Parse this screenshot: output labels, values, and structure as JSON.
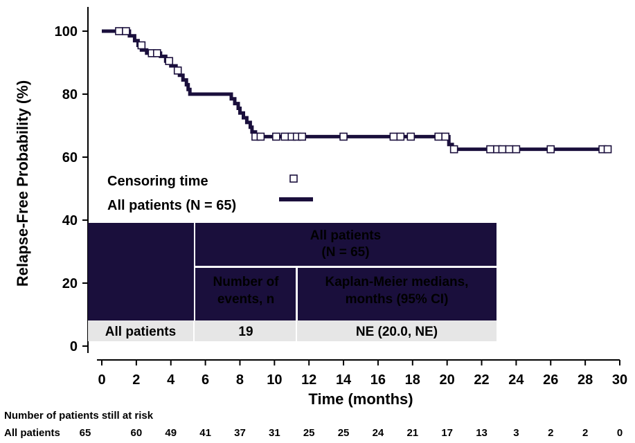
{
  "chart_data": {
    "type": "line",
    "xlabel": "Time (months)",
    "ylabel": "Relapse-Free Probability (%)",
    "xlim": [
      0,
      30
    ],
    "ylim": [
      0,
      100
    ],
    "x_ticks": [
      0,
      2,
      4,
      6,
      8,
      10,
      12,
      14,
      16,
      18,
      20,
      22,
      24,
      26,
      28,
      30
    ],
    "y_ticks": [
      0,
      20,
      40,
      60,
      80,
      100
    ],
    "grid": false,
    "legend": {
      "placement": "center-left",
      "entries": [
        {
          "label": "Censoring time",
          "symbol": "open-square"
        },
        {
          "label": "All patients (N = 65)",
          "symbol": "thick-line"
        }
      ]
    },
    "series": [
      {
        "name": "All patients (N = 65)",
        "color": "#1a0f3c",
        "step_points": [
          [
            0,
            100
          ],
          [
            1.6,
            100
          ],
          [
            1.6,
            98.5
          ],
          [
            1.9,
            98.5
          ],
          [
            1.9,
            97
          ],
          [
            2.1,
            97
          ],
          [
            2.1,
            95.5
          ],
          [
            2.3,
            95.5
          ],
          [
            2.3,
            94
          ],
          [
            2.6,
            94
          ],
          [
            2.6,
            93
          ],
          [
            3.4,
            93
          ],
          [
            3.4,
            92
          ],
          [
            3.7,
            92
          ],
          [
            3.7,
            90.5
          ],
          [
            4.0,
            90.5
          ],
          [
            4.0,
            89
          ],
          [
            4.3,
            89
          ],
          [
            4.3,
            87.5
          ],
          [
            4.5,
            87.5
          ],
          [
            4.5,
            86
          ],
          [
            4.7,
            86
          ],
          [
            4.7,
            84.5
          ],
          [
            4.9,
            84.5
          ],
          [
            4.9,
            83
          ],
          [
            5.0,
            83
          ],
          [
            5.0,
            81.5
          ],
          [
            5.1,
            81.5
          ],
          [
            5.1,
            80
          ],
          [
            7.5,
            80
          ],
          [
            7.5,
            78.5
          ],
          [
            7.7,
            78.5
          ],
          [
            7.7,
            77
          ],
          [
            7.9,
            77
          ],
          [
            7.9,
            75.5
          ],
          [
            8.0,
            75.5
          ],
          [
            8.0,
            74
          ],
          [
            8.2,
            74
          ],
          [
            8.2,
            72.5
          ],
          [
            8.4,
            72.5
          ],
          [
            8.4,
            71
          ],
          [
            8.6,
            71
          ],
          [
            8.6,
            69.5
          ],
          [
            8.7,
            69.5
          ],
          [
            8.7,
            68
          ],
          [
            8.9,
            68
          ],
          [
            8.9,
            66.5
          ],
          [
            20.1,
            66.5
          ],
          [
            20.1,
            64
          ],
          [
            20.3,
            64
          ],
          [
            20.3,
            62.5
          ],
          [
            29.5,
            62.5
          ]
        ],
        "censor_points": [
          [
            1.0,
            100
          ],
          [
            1.4,
            100
          ],
          [
            2.3,
            95.5
          ],
          [
            2.9,
            93
          ],
          [
            3.2,
            93
          ],
          [
            3.9,
            90.5
          ],
          [
            4.4,
            87.5
          ],
          [
            8.9,
            66.5
          ],
          [
            9.2,
            66.5
          ],
          [
            10.1,
            66.5
          ],
          [
            10.6,
            66.5
          ],
          [
            11.0,
            66.5
          ],
          [
            11.3,
            66.5
          ],
          [
            11.6,
            66.5
          ],
          [
            14.0,
            66.5
          ],
          [
            16.9,
            66.5
          ],
          [
            17.3,
            66.5
          ],
          [
            17.9,
            66.5
          ],
          [
            19.5,
            66.5
          ],
          [
            19.9,
            66.5
          ],
          [
            20.4,
            62.5
          ],
          [
            22.5,
            62.5
          ],
          [
            22.9,
            62.5
          ],
          [
            23.2,
            62.5
          ],
          [
            23.6,
            62.5
          ],
          [
            24.0,
            62.5
          ],
          [
            26.0,
            62.5
          ],
          [
            29.0,
            62.5
          ],
          [
            29.3,
            62.5
          ]
        ]
      }
    ],
    "summary_table": {
      "header_group": "All patients\n(N = 65)",
      "columns": [
        "Number of\nevents, n",
        "Kaplan-Meier medians,\nmonths (95% CI)"
      ],
      "row_label": "All patients",
      "row_values": [
        "19",
        "NE (20.0, NE)"
      ]
    },
    "risk_table": {
      "title": "Number of patients still at risk",
      "row_label": "All patients",
      "values": [
        65,
        60,
        49,
        41,
        37,
        31,
        25,
        25,
        24,
        21,
        17,
        13,
        3,
        2,
        2,
        0
      ]
    }
  },
  "colors": {
    "curve": "#1a0f3c",
    "table_header": "#1a0f3c",
    "table_row": "#e6e6e6",
    "axis": "#000000"
  }
}
